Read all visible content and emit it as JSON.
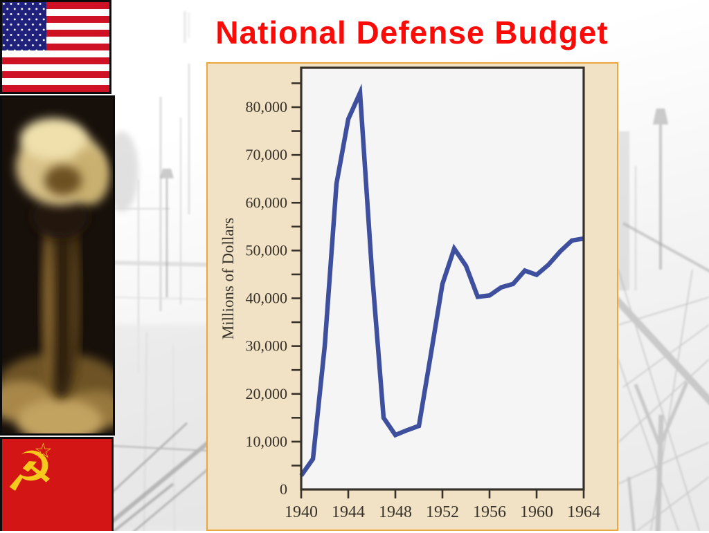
{
  "slide": {
    "title": "National Defense Budget"
  },
  "colors": {
    "title_red": "#fb0b08",
    "panel_bg": "#f2e2c5",
    "panel_border": "#eaa73e",
    "plot_bg": "#f5f5f6",
    "axis": "#363129",
    "line_blue": "#3d4f9d",
    "flag_red": "#cf1126",
    "flag_blue": "#20217a",
    "soviet_red": "#d31515",
    "soviet_gold": "#f6c91c"
  },
  "icons": {
    "hammer_sickle": "☭",
    "star_outline": "☆"
  },
  "chart_data": {
    "type": "line",
    "title": "",
    "xlabel": "",
    "ylabel": "Millions of Dollars",
    "x": [
      1940,
      1941,
      1942,
      1943,
      1944,
      1945,
      1946,
      1947,
      1948,
      1949,
      1950,
      1951,
      1952,
      1953,
      1954,
      1955,
      1956,
      1957,
      1958,
      1959,
      1960,
      1961,
      1962,
      1963,
      1964
    ],
    "values": [
      2900,
      6400,
      30000,
      64000,
      77500,
      83000,
      46000,
      15000,
      11400,
      12400,
      13300,
      28000,
      43000,
      50400,
      46800,
      40300,
      40600,
      42300,
      43000,
      45800,
      44900,
      47000,
      49800,
      52100,
      52500
    ],
    "x_ticks": [
      1940,
      1944,
      1948,
      1952,
      1956,
      1960,
      1964
    ],
    "y_ticks_labeled": [
      0,
      10000,
      20000,
      30000,
      40000,
      50000,
      60000,
      70000,
      80000
    ],
    "y_minor_step": 5000,
    "xlim": [
      1940,
      1964
    ],
    "ylim": [
      0,
      88000
    ],
    "grid": false,
    "legend": null,
    "line_color": "#3d4f9d",
    "plot_bg": "#f5f5f6",
    "axis_color": "#363129"
  }
}
